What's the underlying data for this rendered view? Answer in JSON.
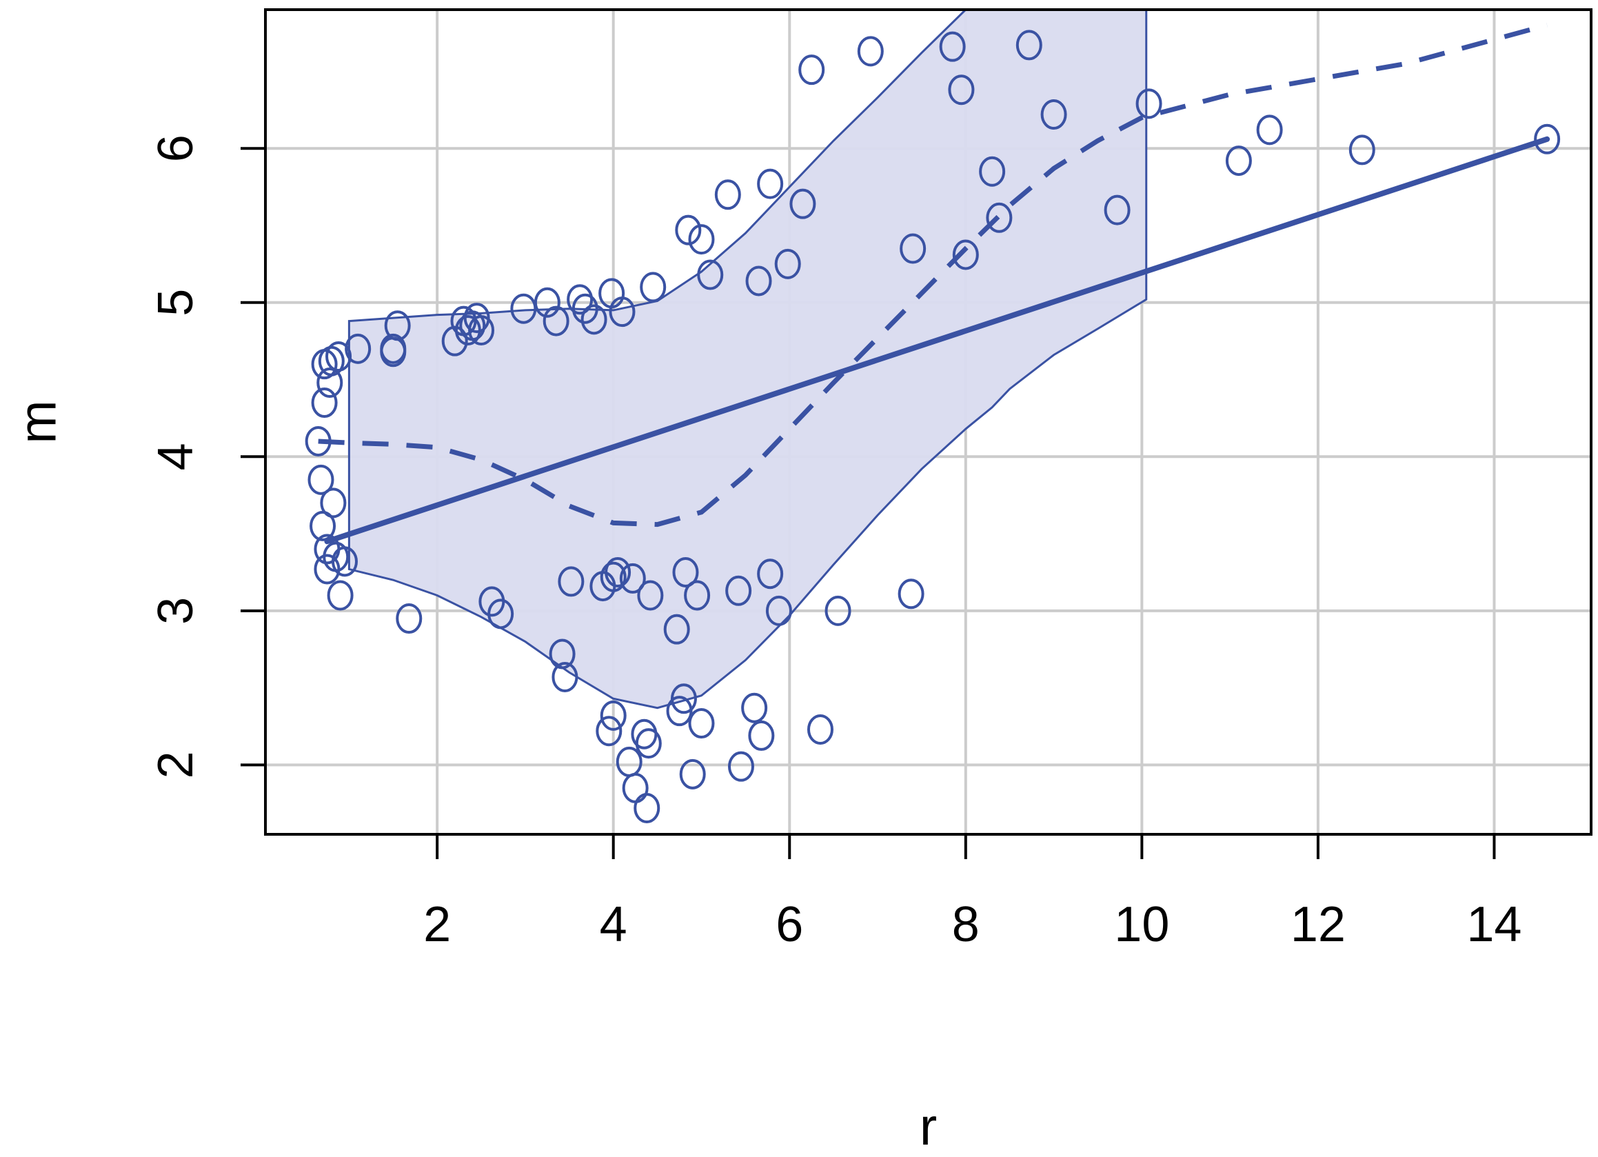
{
  "chart_data": {
    "type": "scatter",
    "title": "",
    "xlabel": "r",
    "ylabel": "m",
    "xlim": [
      0.05,
      15.1
    ],
    "ylim": [
      1.55,
      6.9
    ],
    "grid": true,
    "legend": "none",
    "x_ticks": [
      2,
      4,
      6,
      8,
      10,
      12,
      14
    ],
    "y_ticks": [
      2,
      3,
      4,
      5,
      6
    ],
    "colors": {
      "series": "#3a52a3",
      "band_fill": "#d9dbef",
      "grid": "#cccccc",
      "frame": "#000000"
    },
    "points": [
      {
        "x": 0.65,
        "y": 4.1
      },
      {
        "x": 0.68,
        "y": 3.85
      },
      {
        "x": 0.7,
        "y": 3.55
      },
      {
        "x": 0.72,
        "y": 4.35
      },
      {
        "x": 0.72,
        "y": 4.6
      },
      {
        "x": 0.75,
        "y": 3.4
      },
      {
        "x": 0.75,
        "y": 3.27
      },
      {
        "x": 0.78,
        "y": 4.48
      },
      {
        "x": 0.8,
        "y": 4.62
      },
      {
        "x": 0.82,
        "y": 3.7
      },
      {
        "x": 0.85,
        "y": 3.35
      },
      {
        "x": 0.88,
        "y": 4.65
      },
      {
        "x": 0.9,
        "y": 3.1
      },
      {
        "x": 0.95,
        "y": 3.32
      },
      {
        "x": 1.1,
        "y": 4.7
      },
      {
        "x": 1.5,
        "y": 4.7
      },
      {
        "x": 1.5,
        "y": 4.68
      },
      {
        "x": 1.55,
        "y": 4.85
      },
      {
        "x": 1.68,
        "y": 2.95
      },
      {
        "x": 2.2,
        "y": 4.75
      },
      {
        "x": 2.3,
        "y": 4.88
      },
      {
        "x": 2.35,
        "y": 4.82
      },
      {
        "x": 2.4,
        "y": 4.85
      },
      {
        "x": 2.45,
        "y": 4.9
      },
      {
        "x": 2.5,
        "y": 4.82
      },
      {
        "x": 2.62,
        "y": 3.06
      },
      {
        "x": 2.72,
        "y": 2.98
      },
      {
        "x": 2.98,
        "y": 4.96
      },
      {
        "x": 3.25,
        "y": 5.0
      },
      {
        "x": 3.35,
        "y": 4.88
      },
      {
        "x": 3.42,
        "y": 2.72
      },
      {
        "x": 3.45,
        "y": 2.57
      },
      {
        "x": 3.52,
        "y": 3.19
      },
      {
        "x": 3.62,
        "y": 5.02
      },
      {
        "x": 3.68,
        "y": 4.96
      },
      {
        "x": 3.78,
        "y": 4.89
      },
      {
        "x": 3.88,
        "y": 3.16
      },
      {
        "x": 3.95,
        "y": 2.22
      },
      {
        "x": 3.98,
        "y": 5.06
      },
      {
        "x": 4.0,
        "y": 2.32
      },
      {
        "x": 4.0,
        "y": 3.22
      },
      {
        "x": 4.05,
        "y": 3.25
      },
      {
        "x": 4.1,
        "y": 4.94
      },
      {
        "x": 4.18,
        "y": 2.02
      },
      {
        "x": 4.22,
        "y": 3.21
      },
      {
        "x": 4.25,
        "y": 1.85
      },
      {
        "x": 4.35,
        "y": 2.2
      },
      {
        "x": 4.38,
        "y": 1.72
      },
      {
        "x": 4.4,
        "y": 2.14
      },
      {
        "x": 4.42,
        "y": 3.1
      },
      {
        "x": 4.45,
        "y": 5.1
      },
      {
        "x": 4.72,
        "y": 2.88
      },
      {
        "x": 4.75,
        "y": 2.35
      },
      {
        "x": 4.8,
        "y": 2.43
      },
      {
        "x": 4.82,
        "y": 3.25
      },
      {
        "x": 4.85,
        "y": 5.47
      },
      {
        "x": 4.9,
        "y": 1.94
      },
      {
        "x": 4.95,
        "y": 3.1
      },
      {
        "x": 5.0,
        "y": 2.27
      },
      {
        "x": 5.0,
        "y": 5.41
      },
      {
        "x": 5.1,
        "y": 5.18
      },
      {
        "x": 5.3,
        "y": 5.7
      },
      {
        "x": 5.42,
        "y": 3.13
      },
      {
        "x": 5.45,
        "y": 1.99
      },
      {
        "x": 5.6,
        "y": 2.37
      },
      {
        "x": 5.65,
        "y": 5.14
      },
      {
        "x": 5.68,
        "y": 2.19
      },
      {
        "x": 5.78,
        "y": 3.24
      },
      {
        "x": 5.78,
        "y": 5.77
      },
      {
        "x": 5.88,
        "y": 3.0
      },
      {
        "x": 5.98,
        "y": 5.25
      },
      {
        "x": 6.15,
        "y": 5.64
      },
      {
        "x": 6.25,
        "y": 6.51
      },
      {
        "x": 6.35,
        "y": 2.23
      },
      {
        "x": 6.55,
        "y": 3.0
      },
      {
        "x": 6.92,
        "y": 6.63
      },
      {
        "x": 7.38,
        "y": 3.11
      },
      {
        "x": 7.4,
        "y": 5.35
      },
      {
        "x": 7.85,
        "y": 6.66
      },
      {
        "x": 7.95,
        "y": 6.38
      },
      {
        "x": 8.0,
        "y": 5.31
      },
      {
        "x": 8.3,
        "y": 5.85
      },
      {
        "x": 8.38,
        "y": 5.55
      },
      {
        "x": 8.72,
        "y": 6.67
      },
      {
        "x": 9.0,
        "y": 6.22
      },
      {
        "x": 9.72,
        "y": 5.6
      },
      {
        "x": 10.08,
        "y": 6.29
      },
      {
        "x": 11.1,
        "y": 5.92
      },
      {
        "x": 11.45,
        "y": 6.12
      },
      {
        "x": 12.5,
        "y": 5.99
      },
      {
        "x": 14.6,
        "y": 6.06
      }
    ],
    "linear_fit": {
      "x": [
        0.75,
        14.6
      ],
      "y": [
        3.45,
        6.06
      ]
    },
    "smooth_fit": {
      "x": [
        0.65,
        1.0,
        1.5,
        2.0,
        2.5,
        3.0,
        3.5,
        4.0,
        4.5,
        5.0,
        5.5,
        6.0,
        6.5,
        7.0,
        7.5,
        8.0,
        8.5,
        9.0,
        9.5,
        10.0,
        11.0,
        12.0,
        13.0,
        14.6
      ],
      "y": [
        4.1,
        4.09,
        4.08,
        4.06,
        3.98,
        3.85,
        3.68,
        3.57,
        3.56,
        3.64,
        3.88,
        4.18,
        4.48,
        4.77,
        5.06,
        5.35,
        5.63,
        5.87,
        6.05,
        6.2,
        6.35,
        6.45,
        6.55,
        6.8
      ]
    },
    "confidence_band": {
      "x": [
        1.0,
        1.5,
        2.0,
        2.5,
        3.0,
        3.5,
        4.0,
        4.5,
        5.0,
        5.5,
        6.0,
        6.5,
        7.0,
        7.5,
        8.0,
        8.3,
        8.5,
        9.0,
        9.5,
        10.05
      ],
      "upper": [
        4.88,
        4.9,
        4.92,
        4.93,
        4.95,
        4.96,
        4.95,
        5.01,
        5.2,
        5.45,
        5.75,
        6.05,
        6.33,
        6.62,
        6.9,
        6.9,
        6.9,
        6.9,
        6.9,
        6.9
      ],
      "lower": [
        3.27,
        3.2,
        3.1,
        2.96,
        2.8,
        2.6,
        2.43,
        2.37,
        2.45,
        2.68,
        2.97,
        3.3,
        3.62,
        3.92,
        4.18,
        4.32,
        4.44,
        4.66,
        4.83,
        5.02
      ]
    }
  }
}
